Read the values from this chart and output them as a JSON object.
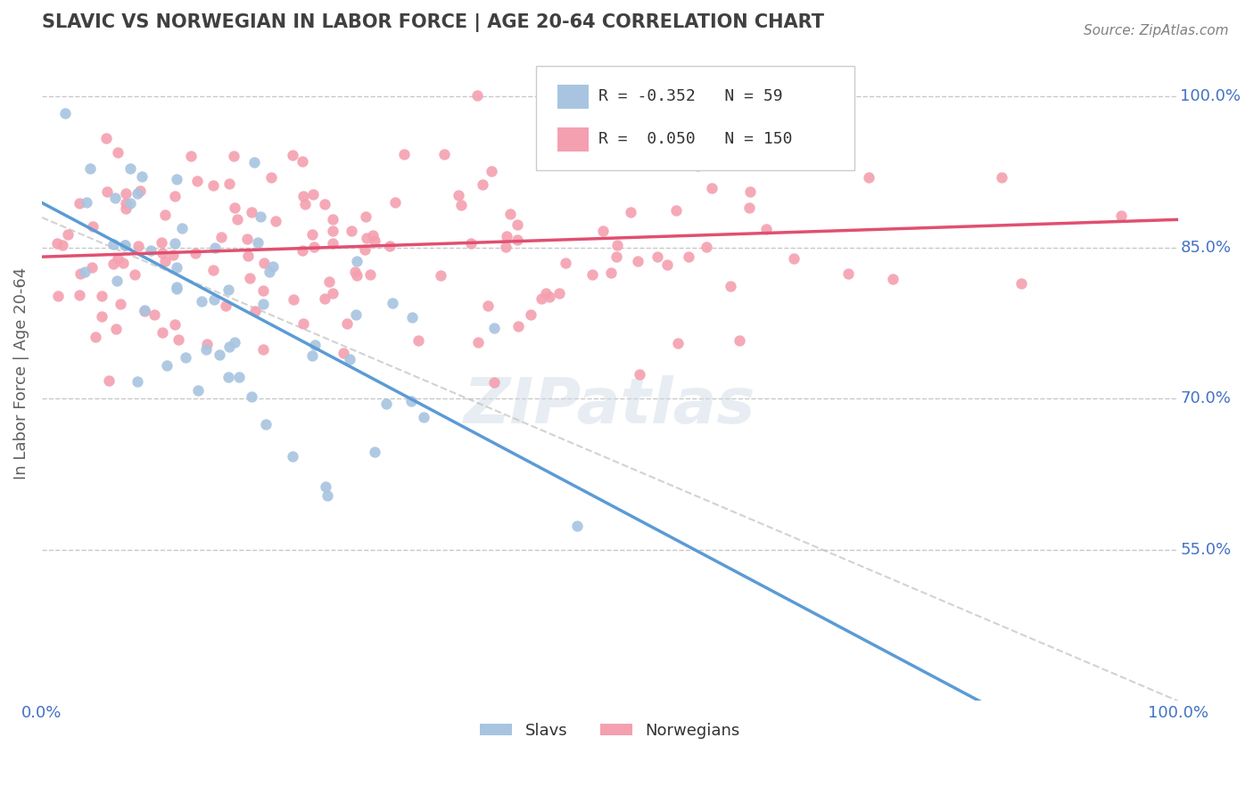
{
  "title": "SLAVIC VS NORWEGIAN IN LABOR FORCE | AGE 20-64 CORRELATION CHART",
  "source_text": "Source: ZipAtlas.com",
  "xlabel": "",
  "ylabel": "In Labor Force | Age 20-64",
  "x_min": 0.0,
  "x_max": 1.0,
  "y_min": 0.4,
  "y_max": 1.05,
  "y_ticks": [
    0.55,
    0.7,
    0.85,
    1.0
  ],
  "y_tick_labels": [
    "55.0%",
    "70.0%",
    "85.0%",
    "100.0%"
  ],
  "x_ticks": [
    0.0,
    1.0
  ],
  "x_tick_labels": [
    "0.0%",
    "100.0%"
  ],
  "slav_color": "#a8c4e0",
  "norw_color": "#f4a0b0",
  "slav_line_color": "#5b9bd5",
  "norw_line_color": "#e05070",
  "ref_line_color": "#c0c0c0",
  "R_slav": -0.352,
  "N_slav": 59,
  "R_norw": 0.05,
  "N_norw": 150,
  "watermark": "ZIPatlas",
  "background_color": "#ffffff",
  "grid_color": "#c8c8c8",
  "axis_label_color": "#4472c4",
  "title_color": "#404040",
  "slav_seed": 42,
  "norw_seed": 123,
  "slav_marker_size": 10,
  "norw_marker_size": 10,
  "legend_slav_label": "Slavs",
  "legend_norw_label": "Norwegians"
}
